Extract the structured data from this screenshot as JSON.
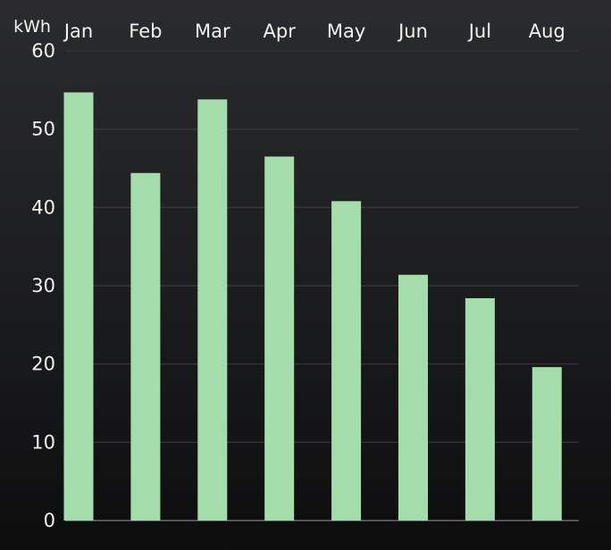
{
  "chart_data": {
    "type": "bar",
    "unit_label": "kWh",
    "categories": [
      "Jan",
      "Feb",
      "Mar",
      "Apr",
      "May",
      "Jun",
      "Jul",
      "Aug"
    ],
    "values": [
      54.7,
      44.4,
      53.8,
      46.5,
      40.8,
      31.4,
      28.4,
      19.6
    ],
    "ylim": [
      0,
      60
    ],
    "yticks": [
      0,
      10,
      20,
      30,
      40,
      50,
      60
    ],
    "xaxis_position": "top",
    "grid": true,
    "bar_color": "#a4ddab",
    "background_color": "#1b1c1e"
  }
}
